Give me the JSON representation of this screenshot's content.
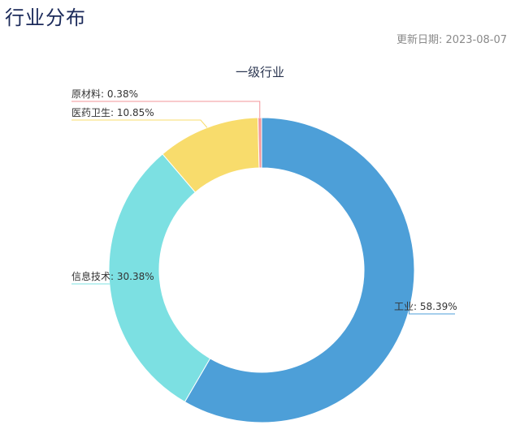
{
  "header": {
    "title": "行业分布",
    "update_date": "更新日期: 2023-08-07"
  },
  "chart_data": {
    "type": "pie",
    "title": "一级行业",
    "donut": true,
    "slices": [
      {
        "label": "工业",
        "value": 58.39,
        "display": "工业: 58.39%",
        "color": "#4d9fd8"
      },
      {
        "label": "信息技术",
        "value": 30.38,
        "display": "信息技术: 30.38%",
        "color": "#7ce0e2"
      },
      {
        "label": "医药卫生",
        "value": 10.85,
        "display": "医药卫生: 10.85%",
        "color": "#f8dc6c"
      },
      {
        "label": "原材料",
        "value": 0.38,
        "display": "原材料: 0.38%",
        "color": "#f3969a"
      }
    ]
  }
}
